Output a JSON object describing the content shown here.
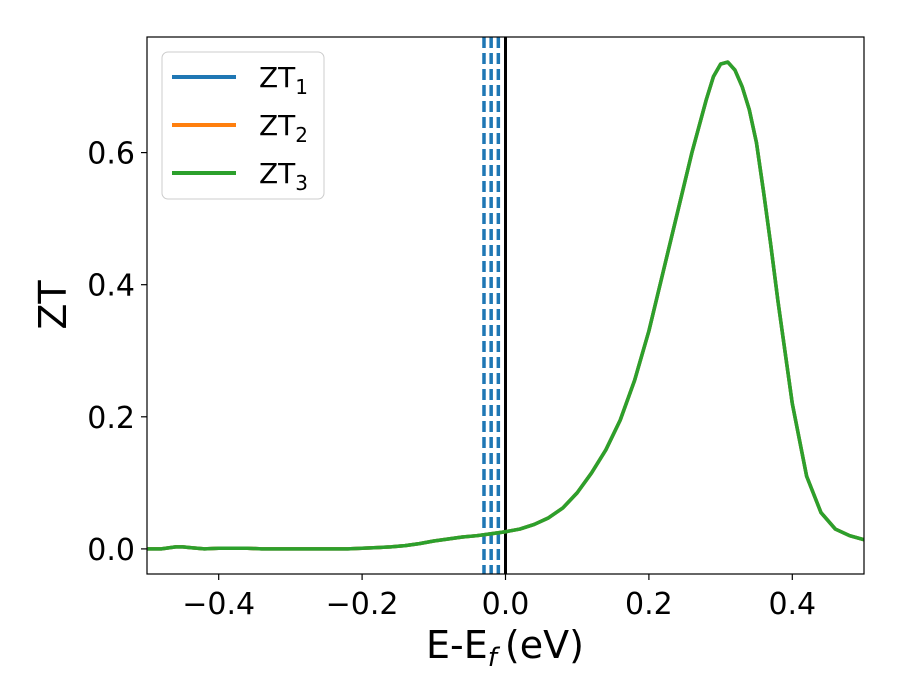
{
  "chart_data": {
    "type": "line",
    "xlabel": "E-E",
    "xlabel_sub": "f",
    "xlabel_unit": "(eV)",
    "ylabel": "ZT",
    "xlim": [
      -0.5,
      0.5
    ],
    "ylim": [
      -0.038,
      0.775
    ],
    "xticks": [
      -0.4,
      -0.2,
      0.0,
      0.2,
      0.4
    ],
    "xtick_labels": [
      "−0.4",
      "−0.2",
      "0.0",
      "0.2",
      "0.4"
    ],
    "yticks": [
      0.0,
      0.2,
      0.4,
      0.6
    ],
    "ytick_labels": [
      "0.0",
      "0.2",
      "0.4",
      "0.6"
    ],
    "grid": false,
    "legend_position": "top-left",
    "x": [
      -0.5,
      -0.48,
      -0.46,
      -0.45,
      -0.44,
      -0.42,
      -0.4,
      -0.38,
      -0.36,
      -0.34,
      -0.32,
      -0.3,
      -0.28,
      -0.26,
      -0.24,
      -0.22,
      -0.2,
      -0.18,
      -0.16,
      -0.14,
      -0.12,
      -0.1,
      -0.08,
      -0.06,
      -0.04,
      -0.02,
      0.0,
      0.02,
      0.04,
      0.06,
      0.08,
      0.1,
      0.12,
      0.14,
      0.16,
      0.18,
      0.2,
      0.22,
      0.24,
      0.26,
      0.28,
      0.29,
      0.3,
      0.31,
      0.32,
      0.33,
      0.34,
      0.35,
      0.36,
      0.37,
      0.38,
      0.4,
      0.42,
      0.44,
      0.46,
      0.48,
      0.5
    ],
    "series": [
      {
        "name": "ZT",
        "name_sub": "1",
        "color": "#1f77b4",
        "values": [
          0.0,
          0.0,
          0.003,
          0.003,
          0.002,
          0.0,
          0.001,
          0.001,
          0.001,
          0.0,
          0.0,
          0.0,
          0.0,
          0.0,
          0.0,
          0.0,
          0.001,
          0.002,
          0.003,
          0.005,
          0.008,
          0.012,
          0.015,
          0.018,
          0.02,
          0.023,
          0.026,
          0.03,
          0.037,
          0.047,
          0.062,
          0.085,
          0.115,
          0.15,
          0.195,
          0.255,
          0.33,
          0.42,
          0.51,
          0.6,
          0.68,
          0.715,
          0.734,
          0.737,
          0.725,
          0.7,
          0.665,
          0.615,
          0.54,
          0.46,
          0.375,
          0.22,
          0.11,
          0.055,
          0.03,
          0.02,
          0.014
        ]
      },
      {
        "name": "ZT",
        "name_sub": "2",
        "color": "#ff7f0e",
        "values": [
          0.0,
          0.0,
          0.003,
          0.003,
          0.002,
          0.0,
          0.001,
          0.001,
          0.001,
          0.0,
          0.0,
          0.0,
          0.0,
          0.0,
          0.0,
          0.0,
          0.001,
          0.002,
          0.003,
          0.005,
          0.008,
          0.012,
          0.015,
          0.018,
          0.02,
          0.023,
          0.026,
          0.03,
          0.037,
          0.047,
          0.062,
          0.085,
          0.115,
          0.15,
          0.195,
          0.255,
          0.33,
          0.42,
          0.51,
          0.6,
          0.68,
          0.715,
          0.734,
          0.737,
          0.725,
          0.7,
          0.665,
          0.615,
          0.54,
          0.46,
          0.375,
          0.22,
          0.11,
          0.055,
          0.03,
          0.02,
          0.014
        ]
      },
      {
        "name": "ZT",
        "name_sub": "3",
        "color": "#2ca02c",
        "values": [
          0.0,
          0.0,
          0.003,
          0.003,
          0.002,
          0.0,
          0.001,
          0.001,
          0.001,
          0.0,
          0.0,
          0.0,
          0.0,
          0.0,
          0.0,
          0.0,
          0.001,
          0.002,
          0.003,
          0.005,
          0.008,
          0.012,
          0.015,
          0.018,
          0.02,
          0.023,
          0.026,
          0.03,
          0.037,
          0.047,
          0.062,
          0.085,
          0.115,
          0.15,
          0.195,
          0.255,
          0.33,
          0.42,
          0.51,
          0.6,
          0.68,
          0.715,
          0.734,
          0.737,
          0.725,
          0.7,
          0.665,
          0.615,
          0.54,
          0.46,
          0.375,
          0.22,
          0.11,
          0.055,
          0.03,
          0.02,
          0.014
        ]
      }
    ],
    "vlines": [
      {
        "x": -0.03,
        "style": "dashed",
        "color": "#1f77b4"
      },
      {
        "x": -0.02,
        "style": "dashed",
        "color": "#1f77b4"
      },
      {
        "x": -0.01,
        "style": "dashed",
        "color": "#1f77b4"
      },
      {
        "x": 0.0,
        "style": "solid",
        "color": "#000000"
      }
    ]
  }
}
